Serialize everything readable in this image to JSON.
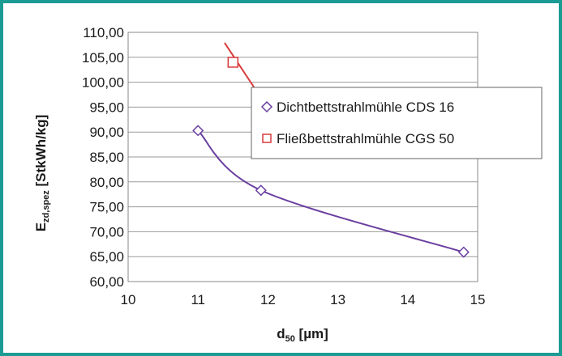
{
  "chart_data": {
    "type": "scatter",
    "title": "",
    "xlabel": {
      "main": "d",
      "sub": "50",
      "rest": " [µm]"
    },
    "ylabel": {
      "main": "E",
      "sub": "zd,spez",
      "rest": " [StkWh/kg]"
    },
    "xlim": [
      10,
      15
    ],
    "ylim": [
      60,
      110
    ],
    "xticks": [
      "10",
      "11",
      "12",
      "13",
      "14",
      "15"
    ],
    "yticks": [
      "60,00",
      "65,00",
      "70,00",
      "75,00",
      "80,00",
      "85,00",
      "90,00",
      "95,00",
      "100,00",
      "105,00",
      "110,00"
    ],
    "grid": "horizontal",
    "legend_position": "right",
    "series": [
      {
        "name": "Dichtbettstrahlmühle CDS 16",
        "marker": "diamond",
        "color": "#6a3fa0",
        "x": [
          11.0,
          11.9,
          14.8
        ],
        "y": [
          90.3,
          78.3,
          65.9
        ]
      },
      {
        "name": "Fließbettstrahlmühle CGS 50",
        "marker": "square",
        "color": "#d93a3a",
        "x": [
          11.5
        ],
        "y": [
          104.0
        ],
        "trend_x": [
          11.38,
          11.8
        ],
        "trend_y": [
          107.9,
          99.0
        ]
      }
    ]
  }
}
